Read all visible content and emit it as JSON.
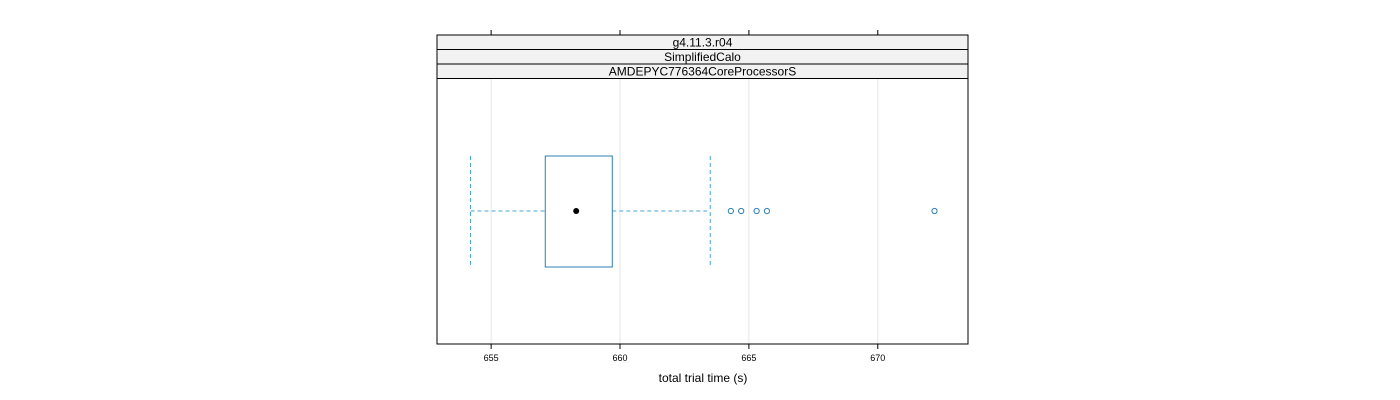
{
  "chart_data": {
    "type": "boxplot",
    "panel_strips": [
      "g4.11.3.r04",
      "SimplifiedCalo",
      "AMDEPYC776364CoreProcessorS"
    ],
    "xlabel": "total trial time (s)",
    "ylabel": "",
    "xlim": [
      652.9,
      673.5
    ],
    "x_ticks": [
      655,
      660,
      665,
      670
    ],
    "x_tick_labels": [
      "655",
      "660",
      "665",
      "670"
    ],
    "grid": true,
    "box": {
      "whisker_low": 654.2,
      "q1": 657.1,
      "median": 658.3,
      "q3": 659.7,
      "whisker_high": 663.5
    },
    "outliers": [
      664.3,
      664.7,
      665.3,
      665.7,
      672.2
    ]
  },
  "colors": {
    "box": "#2d7fb8",
    "whisker": "#4ba3d6",
    "strip_fill": "#f2f2f2",
    "grid": "#e6e6e6",
    "median_dot": "#000000"
  }
}
